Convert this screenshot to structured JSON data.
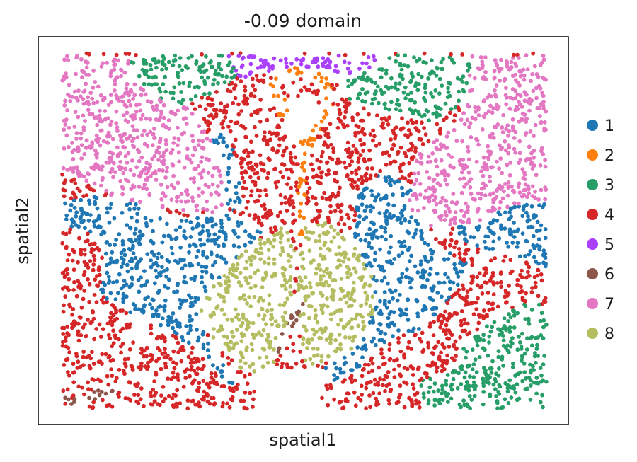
{
  "chart_data": {
    "type": "scatter",
    "title": "-0.09 domain",
    "xlabel": "spatial1",
    "ylabel": "spatial2",
    "xlim": [
      0,
      100
    ],
    "ylim": [
      0,
      100
    ],
    "ticks": "none",
    "grid": false,
    "legend_position": "right",
    "point_count_approx": 4600,
    "series": [
      {
        "name": "1",
        "color": "#1f77b4"
      },
      {
        "name": "2",
        "color": "#ff7f0e"
      },
      {
        "name": "3",
        "color": "#279e68"
      },
      {
        "name": "4",
        "color": "#d62728"
      },
      {
        "name": "5",
        "color": "#aa40fc"
      },
      {
        "name": "6",
        "color": "#8c564b"
      },
      {
        "name": "7",
        "color": "#e377c2"
      },
      {
        "name": "8",
        "color": "#b5bd61"
      }
    ]
  }
}
